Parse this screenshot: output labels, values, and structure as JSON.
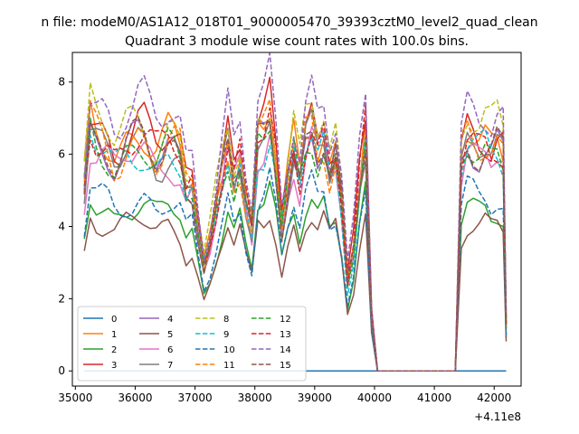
{
  "figure": {
    "suptitle": "n file: modeM0/AS1A12_018T01_9000005470_39393cztM0_level2_quad_clean"
  },
  "chart_data": {
    "type": "line",
    "title": "Quadrant 3 module wise count rates with 100.0s bins.",
    "xlabel": "",
    "ylabel": "",
    "x_offset_label": "+4.11e8",
    "xlim": [
      34950,
      42450
    ],
    "ylim": [
      -0.42,
      8.82
    ],
    "x_ticks": [
      35000,
      36000,
      37000,
      38000,
      39000,
      40000,
      41000,
      42000
    ],
    "x_tick_labels": [
      "35000",
      "36000",
      "37000",
      "38000",
      "39000",
      "40000",
      "41000",
      "42000"
    ],
    "y_ticks": [
      0,
      2,
      4,
      6,
      8
    ],
    "y_tick_labels": [
      "0",
      "2",
      "4",
      "6",
      "8"
    ],
    "legend_position": "lower-left",
    "x_segments": [
      {
        "start": 35150,
        "end": 40050,
        "step": 100
      },
      {
        "start": 41350,
        "end": 42200,
        "step": 100
      }
    ],
    "series": [
      {
        "name": "0",
        "color": "#1f77b4",
        "dash": "solid",
        "zero": true,
        "base": 0,
        "amp": 0
      },
      {
        "name": "1",
        "color": "#ff7f0e",
        "dash": "solid",
        "base": 6.7,
        "amp": 0.5
      },
      {
        "name": "2",
        "color": "#2ca02c",
        "dash": "solid",
        "base": 4.7,
        "amp": 0.35
      },
      {
        "name": "3",
        "color": "#d62728",
        "dash": "solid",
        "base": 6.8,
        "amp": 0.5
      },
      {
        "name": "4",
        "color": "#9467bd",
        "dash": "solid",
        "base": 6.4,
        "amp": 0.45
      },
      {
        "name": "5",
        "color": "#8c564b",
        "dash": "solid",
        "base": 4.2,
        "amp": 0.3
      },
      {
        "name": "6",
        "color": "#e377c2",
        "dash": "solid",
        "base": 6.1,
        "amp": 0.45
      },
      {
        "name": "7",
        "color": "#7f7f7f",
        "dash": "solid",
        "base": 6.3,
        "amp": 0.4
      },
      {
        "name": "8",
        "color": "#bcbd22",
        "dash": "dashed",
        "base": 7.0,
        "amp": 0.5
      },
      {
        "name": "9",
        "color": "#17becf",
        "dash": "dashed",
        "base": 6.2,
        "amp": 0.45
      },
      {
        "name": "10",
        "color": "#1f77b4",
        "dash": "dashed",
        "base": 4.9,
        "amp": 0.35
      },
      {
        "name": "11",
        "color": "#ff7f0e",
        "dash": "dashed",
        "base": 6.5,
        "amp": 0.5
      },
      {
        "name": "12",
        "color": "#2ca02c",
        "dash": "dashed",
        "base": 6.3,
        "amp": 0.45
      },
      {
        "name": "13",
        "color": "#d62728",
        "dash": "dashed",
        "base": 6.6,
        "amp": 0.5
      },
      {
        "name": "14",
        "color": "#9467bd",
        "dash": "dashed",
        "base": 7.5,
        "amp": 0.5
      },
      {
        "name": "15",
        "color": "#8c564b",
        "dash": "dashed",
        "base": 6.4,
        "amp": 0.45
      }
    ],
    "shape_profile": [
      [
        35150,
        0.78
      ],
      [
        35250,
        1.05
      ],
      [
        35350,
        1.0
      ],
      [
        35450,
        0.98
      ],
      [
        35550,
        0.95
      ],
      [
        35650,
        0.9
      ],
      [
        35750,
        0.92
      ],
      [
        35850,
        0.96
      ],
      [
        35950,
        0.98
      ],
      [
        36050,
        1.0
      ],
      [
        36150,
        0.99
      ],
      [
        36250,
        0.94
      ],
      [
        36350,
        0.9
      ],
      [
        36450,
        0.92
      ],
      [
        36550,
        0.96
      ],
      [
        36650,
        0.95
      ],
      [
        36750,
        0.92
      ],
      [
        36850,
        0.78
      ],
      [
        36950,
        0.8
      ],
      [
        37050,
        0.62
      ],
      [
        37150,
        0.45
      ],
      [
        37250,
        0.55
      ],
      [
        37350,
        0.7
      ],
      [
        37450,
        0.85
      ],
      [
        37550,
        0.98
      ],
      [
        37650,
        0.82
      ],
      [
        37750,
        0.9
      ],
      [
        37850,
        0.72
      ],
      [
        37950,
        0.6
      ],
      [
        38050,
        0.98
      ],
      [
        38150,
        1.0
      ],
      [
        38250,
        1.08
      ],
      [
        38350,
        0.88
      ],
      [
        38450,
        0.62
      ],
      [
        38550,
        0.8
      ],
      [
        38650,
        0.95
      ],
      [
        38750,
        0.82
      ],
      [
        38850,
        1.0
      ],
      [
        38950,
        1.06
      ],
      [
        39050,
        0.95
      ],
      [
        39150,
        1.0
      ],
      [
        39250,
        0.85
      ],
      [
        39350,
        0.92
      ],
      [
        39450,
        0.72
      ],
      [
        39550,
        0.38
      ],
      [
        39650,
        0.52
      ],
      [
        39750,
        0.8
      ],
      [
        39850,
        1.0
      ],
      [
        39950,
        0.24
      ],
      [
        40050,
        0.0
      ],
      [
        41350,
        0.0
      ],
      [
        41450,
        0.9
      ],
      [
        41550,
        1.0
      ],
      [
        41650,
        0.98
      ],
      [
        41750,
        0.96
      ],
      [
        41850,
        0.98
      ],
      [
        41950,
        0.95
      ],
      [
        42050,
        0.98
      ],
      [
        42150,
        0.94
      ],
      [
        42200,
        0.2
      ]
    ]
  }
}
